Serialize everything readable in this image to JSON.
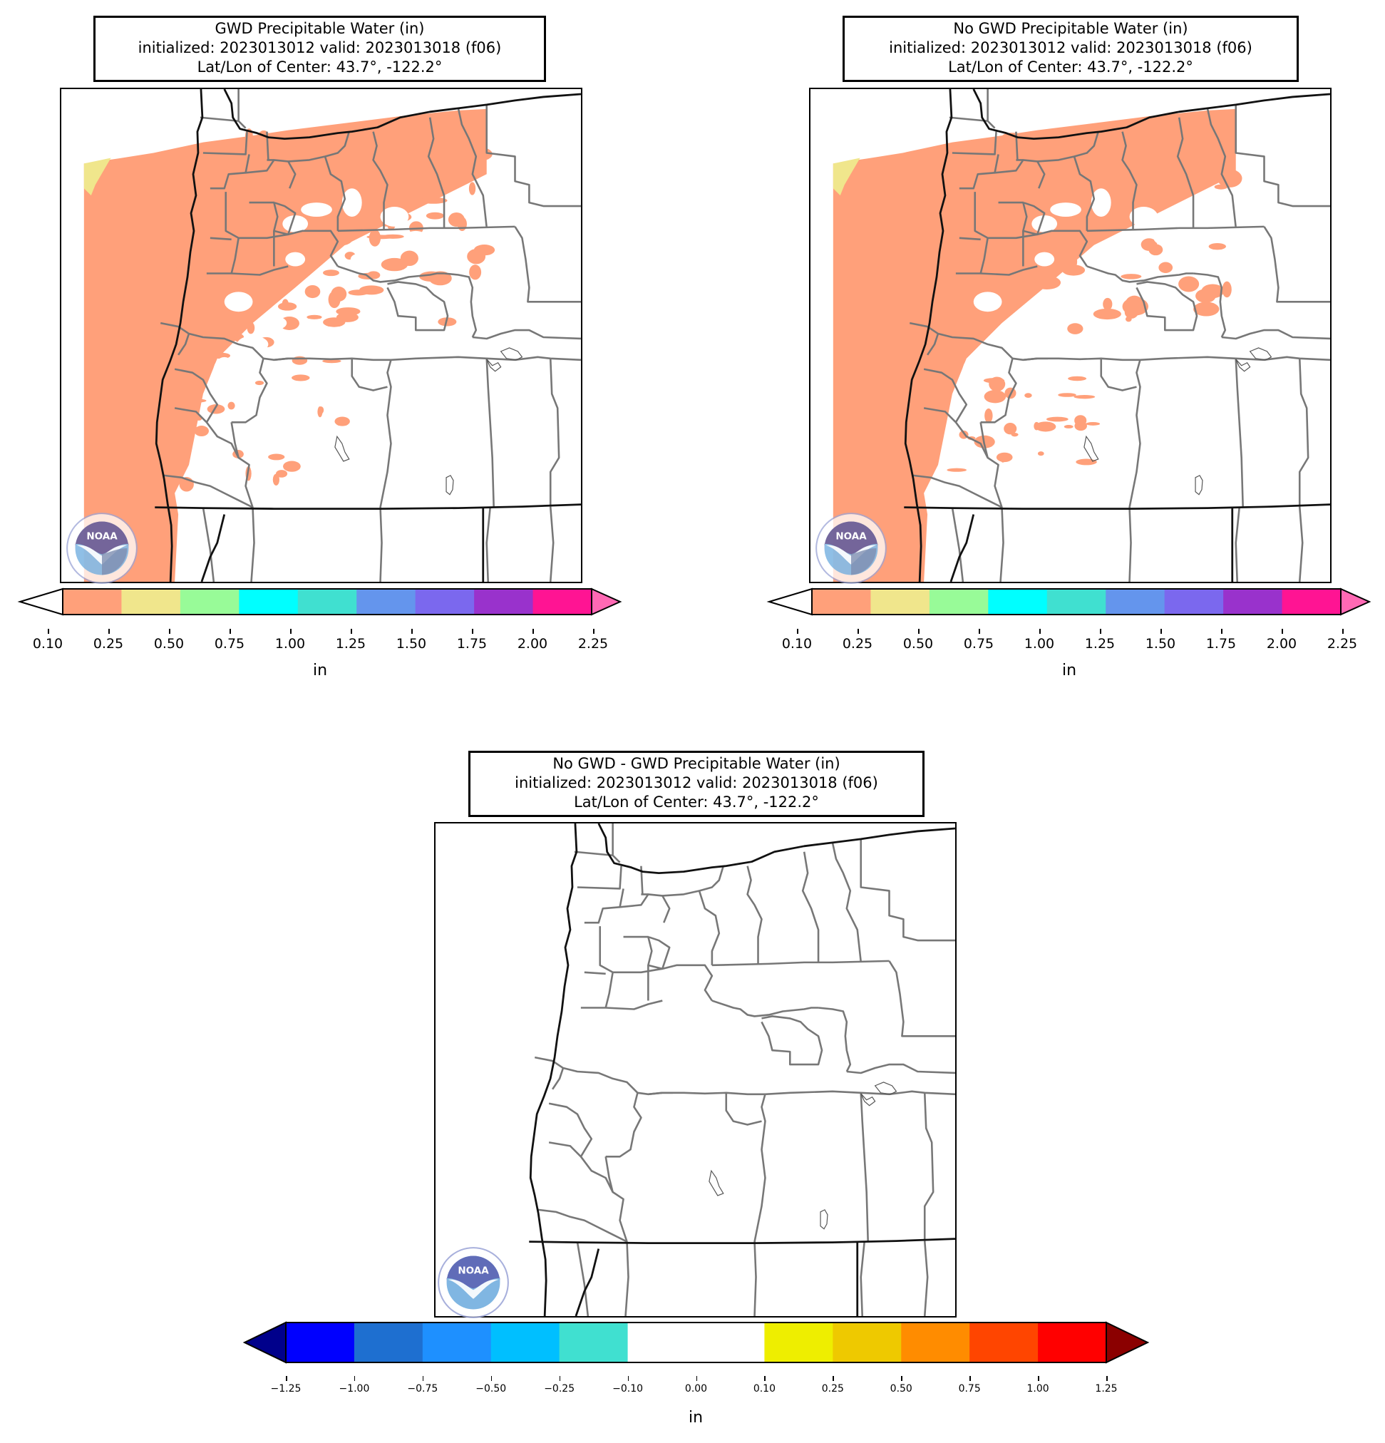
{
  "panels": [
    {
      "id": "gwd",
      "title_lines": [
        "GWD Precipitable Water (in)",
        "initialized: 2023013012 valid: 2023013018 (f06)",
        "Lat/Lon of Center: 43.7°, -122.2°"
      ],
      "has_fill": true,
      "logo_text": "NOAA"
    },
    {
      "id": "nogwd",
      "title_lines": [
        "No GWD Precipitable Water (in)",
        "initialized: 2023013012 valid: 2023013018 (f06)",
        "Lat/Lon of Center: 43.7°, -122.2°"
      ],
      "has_fill": true,
      "logo_text": "NOAA"
    },
    {
      "id": "diff",
      "title_lines": [
        "No GWD - GWD Precipitable Water (in)",
        "initialized: 2023013012 valid: 2023013018 (f06)",
        "Lat/Lon of Center: 43.7°, -122.2°"
      ],
      "has_fill": false,
      "logo_text": "NOAA"
    }
  ],
  "colorbar_pw": {
    "ticks": [
      "0.10",
      "0.25",
      "0.50",
      "0.75",
      "1.00",
      "1.25",
      "1.50",
      "1.75",
      "2.00",
      "2.25"
    ],
    "colors": [
      "#ffa07a",
      "#f0e68c",
      "#98fb98",
      "#00ffff",
      "#40e0d0",
      "#6495ed",
      "#7b68ee",
      "#9932cc",
      "#ff1493"
    ],
    "under": "#ffffff",
    "over": "#ff69b4",
    "unit": "in"
  },
  "colorbar_diff": {
    "ticks": [
      "−1.25",
      "−1.00",
      "−0.75",
      "−0.50",
      "−0.25",
      "−0.10",
      "0.00",
      "0.10",
      "0.25",
      "0.50",
      "0.75",
      "1.00",
      "1.25"
    ],
    "colors": [
      "#0000ff",
      "#1e6fd0",
      "#1e90ff",
      "#00bfff",
      "#40e0d0",
      "#ffffff",
      "#ffffff",
      "#eeee00",
      "#eec900",
      "#ff8c00",
      "#ff4500",
      "#ff0000"
    ],
    "under": "#00008b",
    "over": "#8b0000",
    "unit": "in"
  }
}
